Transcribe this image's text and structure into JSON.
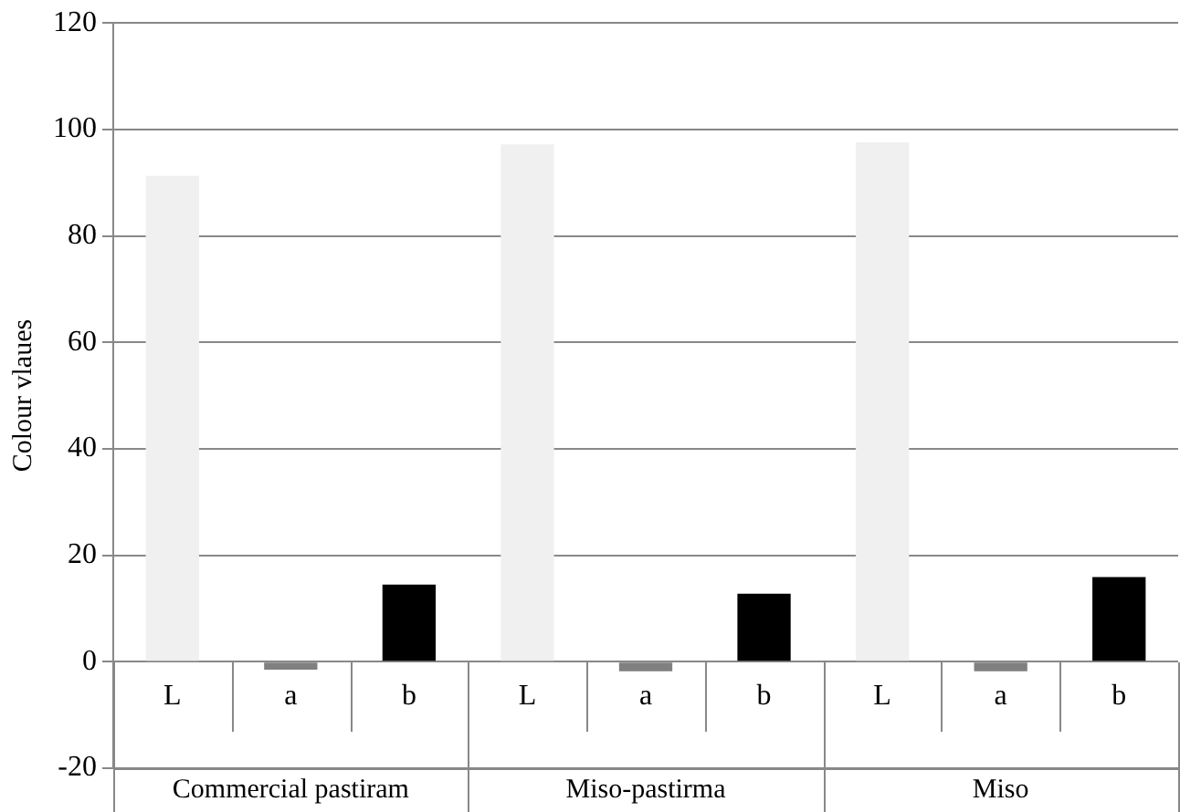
{
  "chart_data": {
    "type": "bar",
    "ylabel": "Colour vlaues",
    "categories": [
      "L",
      "a",
      "b",
      "L",
      "a",
      "b",
      "L",
      "a",
      "b"
    ],
    "values": [
      91.3,
      -1.5,
      14.5,
      97.2,
      -1.8,
      12.8,
      97.6,
      -1.8,
      15.9
    ],
    "colors": [
      "#f0f0f0",
      "#808080",
      "#000000",
      "#f0f0f0",
      "#808080",
      "#000000",
      "#f0f0f0",
      "#808080",
      "#000000"
    ],
    "annotations": [
      "Commercial pastiram",
      "Miso-pastirma",
      "Miso"
    ],
    "ylim": [
      -20,
      120
    ],
    "yticks": [
      -20,
      0,
      20,
      40,
      60,
      80,
      100,
      120
    ],
    "grid": "y",
    "legend": false
  }
}
